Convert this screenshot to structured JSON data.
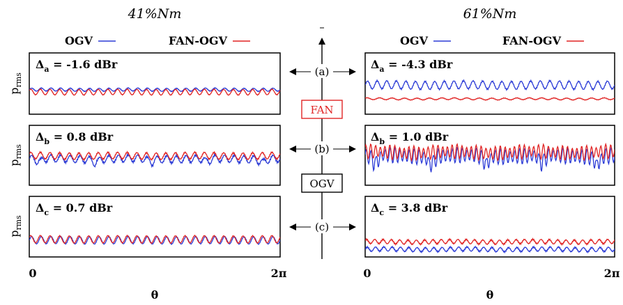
{
  "chart_data": [
    {
      "type": "line",
      "column_title": "41%Nm",
      "legend": [
        {
          "name": "OGV",
          "color": "#2b3bd6"
        },
        {
          "name": "FAN-OGV",
          "color": "#e02424"
        }
      ],
      "xlabel": "θ",
      "x_ticks": [
        "0",
        "2π"
      ],
      "xlim": [
        0,
        6.2832
      ],
      "ylabel": "p",
      "ylabel_sub": "rms",
      "panels": [
        {
          "delta_symbol": "Δ",
          "delta_sub": "a",
          "delta_value": " = -1.6 dBr",
          "ylim": [
            -1,
            1
          ],
          "series": [
            {
              "name": "OGV",
              "color": "#2b3bd6",
              "mean": -0.2,
              "amp": 0.05,
              "cycles": 26,
              "noise": 0.01
            },
            {
              "name": "FAN-OGV",
              "color": "#e02424",
              "mean": -0.28,
              "amp": 0.09,
              "cycles": 26,
              "noise": 0.01
            }
          ]
        },
        {
          "delta_symbol": "Δ",
          "delta_sub": "b",
          "delta_value": " = 0.8 dBr",
          "ylim": [
            -1,
            1
          ],
          "series": [
            {
              "name": "OGV",
              "color": "#2b3bd6",
              "mean": -0.12,
              "amp": 0.12,
              "cycles": 26,
              "noise": 0.03,
              "dips": 0.12
            },
            {
              "name": "FAN-OGV",
              "color": "#e02424",
              "mean": -0.02,
              "amp": 0.11,
              "cycles": 26,
              "noise": 0.02
            }
          ]
        },
        {
          "delta_symbol": "Δ",
          "delta_sub": "c",
          "delta_value": " = 0.7 dBr",
          "ylim": [
            -1,
            1
          ],
          "series": [
            {
              "name": "OGV",
              "color": "#2b3bd6",
              "mean": -0.45,
              "amp": 0.12,
              "cycles": 26,
              "noise": 0.01
            },
            {
              "name": "FAN-OGV",
              "color": "#e02424",
              "mean": -0.42,
              "amp": 0.12,
              "cycles": 26,
              "noise": 0.01
            }
          ]
        }
      ]
    },
    {
      "type": "line",
      "column_title": "61%Nm",
      "legend": [
        {
          "name": "OGV",
          "color": "#2b3bd6"
        },
        {
          "name": "FAN-OGV",
          "color": "#e02424"
        }
      ],
      "xlabel": "θ",
      "x_ticks": [
        "0",
        "2π"
      ],
      "xlim": [
        0,
        6.2832
      ],
      "panels": [
        {
          "delta_symbol": "Δ",
          "delta_sub": "a",
          "delta_value": " = -4.3 dBr",
          "ylim": [
            -1,
            1
          ],
          "series": [
            {
              "name": "OGV",
              "color": "#2b3bd6",
              "mean": -0.05,
              "amp": 0.13,
              "cycles": 26,
              "noise": 0.02
            },
            {
              "name": "FAN-OGV",
              "color": "#e02424",
              "mean": -0.5,
              "amp": 0.03,
              "cycles": 20,
              "noise": 0.01
            }
          ]
        },
        {
          "delta_symbol": "Δ",
          "delta_sub": "b",
          "delta_value": " = 1.0 dBr",
          "ylim": [
            -1,
            1
          ],
          "series": [
            {
              "name": "OGV",
              "color": "#2b3bd6",
              "mean": -0.02,
              "amp": 0.22,
              "cycles": 52,
              "noise": 0.05,
              "dips": 0.3
            },
            {
              "name": "FAN-OGV",
              "color": "#e02424",
              "mean": 0.1,
              "amp": 0.2,
              "cycles": 52,
              "noise": 0.05
            }
          ]
        },
        {
          "delta_symbol": "Δ",
          "delta_sub": "c",
          "delta_value": " = 3.8 dBr",
          "ylim": [
            -1,
            1
          ],
          "series": [
            {
              "name": "OGV",
              "color": "#2b3bd6",
              "mean": -0.75,
              "amp": 0.07,
              "cycles": 30,
              "noise": 0.02
            },
            {
              "name": "FAN-OGV",
              "color": "#e02424",
              "mean": -0.5,
              "amp": 0.07,
              "cycles": 30,
              "noise": 0.02
            }
          ]
        }
      ]
    }
  ],
  "center_axis": {
    "labels": [
      "(a)",
      "(b)",
      "(c)"
    ],
    "components": [
      {
        "name": "FAN",
        "color": "#e02424"
      },
      {
        "name": "OGV",
        "color": "#000000"
      }
    ]
  }
}
